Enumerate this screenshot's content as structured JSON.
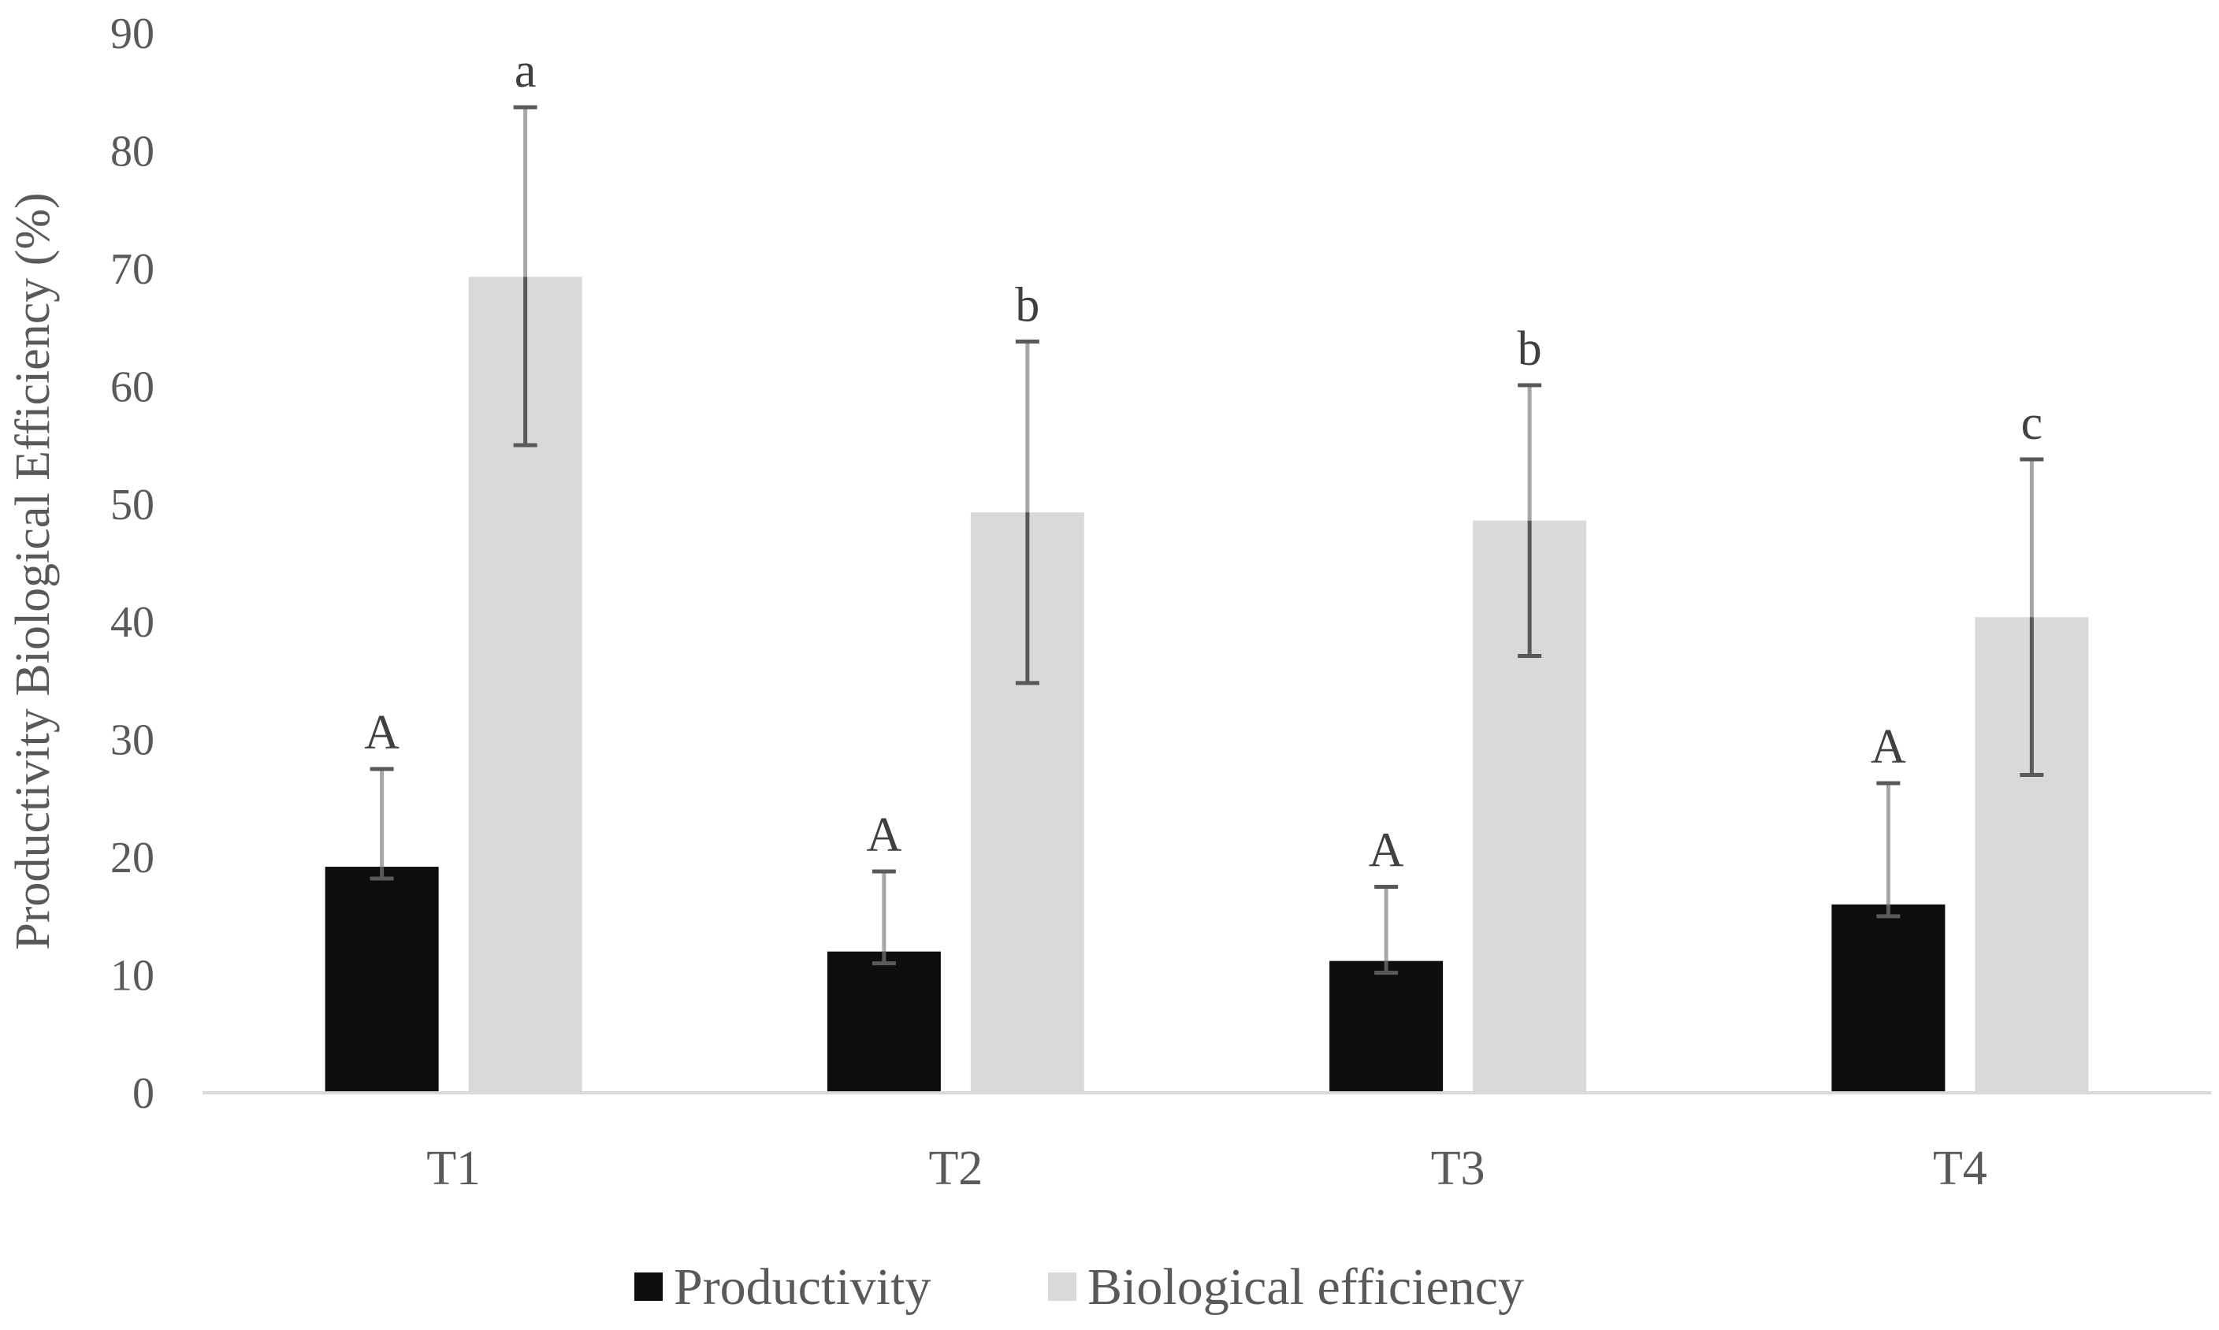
{
  "chart_data": {
    "type": "bar",
    "title": "",
    "xlabel": "",
    "ylabel": "Productivity Biological Efficiency (%)",
    "ylim": [
      0,
      90
    ],
    "yticks": [
      0,
      10,
      20,
      30,
      40,
      50,
      60,
      70,
      80,
      90
    ],
    "grid": false,
    "legend_position": "bottom",
    "categories": [
      "T1",
      "T2",
      "T3",
      "T4"
    ],
    "series": [
      {
        "name": "Productivity",
        "color": "#0d0d0d",
        "values": [
          19.2,
          12.0,
          11.2,
          16.0
        ],
        "error_low": [
          18.2,
          11.0,
          10.2,
          15.0
        ],
        "error_high": [
          27.5,
          18.8,
          17.5,
          26.3
        ],
        "letters": [
          "A",
          "A",
          "A",
          "A"
        ]
      },
      {
        "name": "Biological efficiency",
        "color": "#d9d9d9",
        "values": [
          69.3,
          49.3,
          48.6,
          40.4
        ],
        "error_low": [
          55.0,
          34.8,
          37.1,
          27.0
        ],
        "error_high": [
          83.7,
          63.8,
          60.1,
          53.8
        ],
        "letters": [
          "a",
          "b",
          "b",
          "c"
        ]
      }
    ]
  }
}
